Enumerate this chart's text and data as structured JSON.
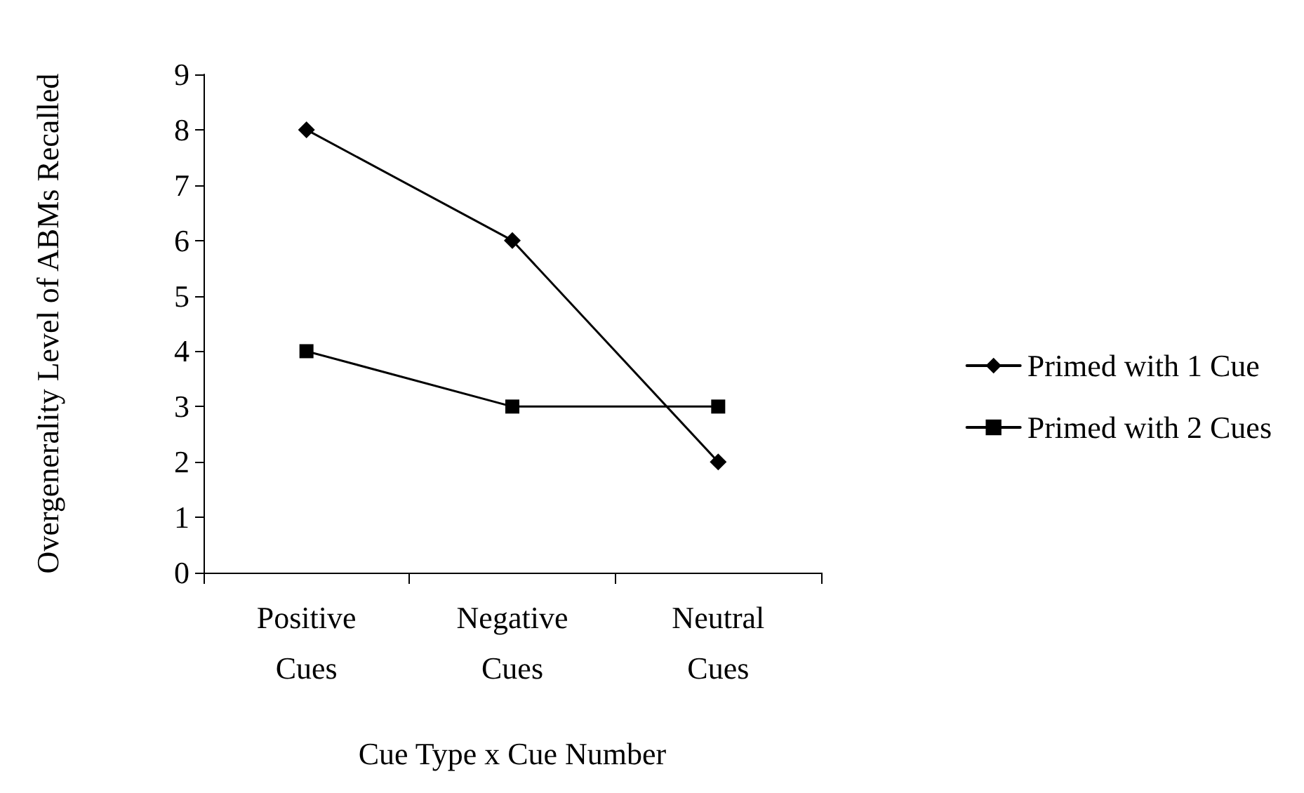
{
  "chart_data": {
    "type": "line",
    "xlabel": "Cue Type x Cue Number",
    "ylabel": "Overgenerality Level of ABMs Recalled",
    "categories": [
      "Positive\nCues",
      "Negative\nCues",
      "Neutral\nCues"
    ],
    "series": [
      {
        "name": "Primed with 1 Cue",
        "color": "#000000",
        "values": [
          8,
          6,
          2
        ],
        "marker": "diamond"
      },
      {
        "name": "Primed with 2 Cues",
        "color": "#000000",
        "values": [
          4,
          3,
          3
        ],
        "marker": "square"
      }
    ],
    "ylim": [
      0,
      9
    ],
    "yticks": [
      0,
      1,
      2,
      3,
      4,
      5,
      6,
      7,
      8,
      9
    ],
    "grid": false,
    "legend": "right",
    "line_style": "solid"
  }
}
